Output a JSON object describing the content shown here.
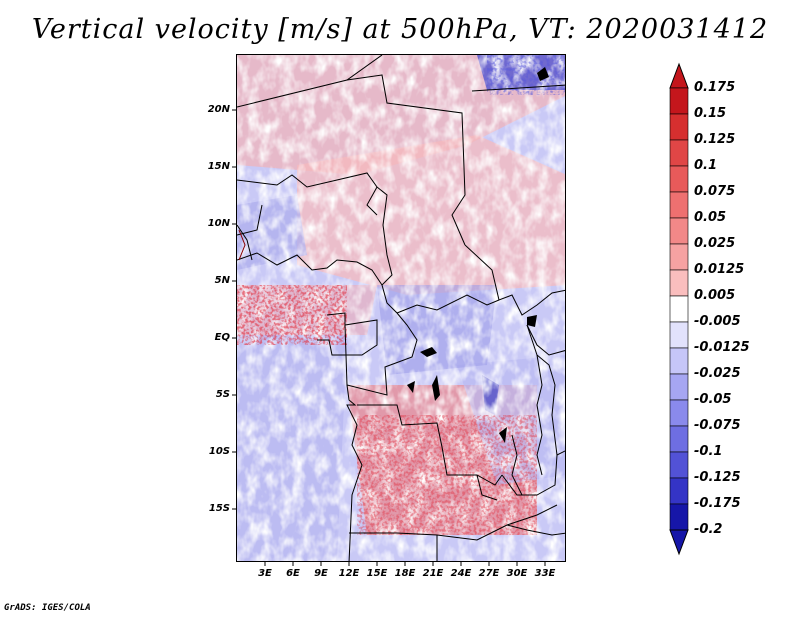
{
  "title": "Vertical velocity [m/s] at 500hPa, VT: 2020031412",
  "footer": "GrADS: IGES/COLA",
  "map": {
    "variable": "Vertical velocity",
    "units": "m/s",
    "level": "500hPa",
    "valid_time": "2020031412",
    "lat_labels": [
      "20N",
      "15N",
      "10N",
      "5N",
      "EQ",
      "5S",
      "10S",
      "15S"
    ],
    "lon_labels": [
      "3E",
      "6E",
      "9E",
      "12E",
      "15E",
      "18E",
      "21E",
      "24E",
      "27E",
      "30E",
      "33E"
    ]
  },
  "colorbar": {
    "labels": [
      "0.175",
      "0.15",
      "0.125",
      "0.1",
      "0.075",
      "0.05",
      "0.025",
      "0.0125",
      "0.005",
      "-0.005",
      "-0.0125",
      "-0.025",
      "-0.05",
      "-0.075",
      "-0.1",
      "-0.125",
      "-0.175",
      "-0.2"
    ],
    "colors": [
      "#c4161c",
      "#d62f2f",
      "#e04646",
      "#e85a5a",
      "#ee7070",
      "#f28888",
      "#f6a2a2",
      "#fabebe",
      "#fde0e0",
      "#ffffff",
      "#e2e2fc",
      "#c6c6f8",
      "#a6a6f2",
      "#8a8aec",
      "#6e6ee2",
      "#5252d6",
      "#3434c6",
      "#1616a8"
    ]
  }
}
